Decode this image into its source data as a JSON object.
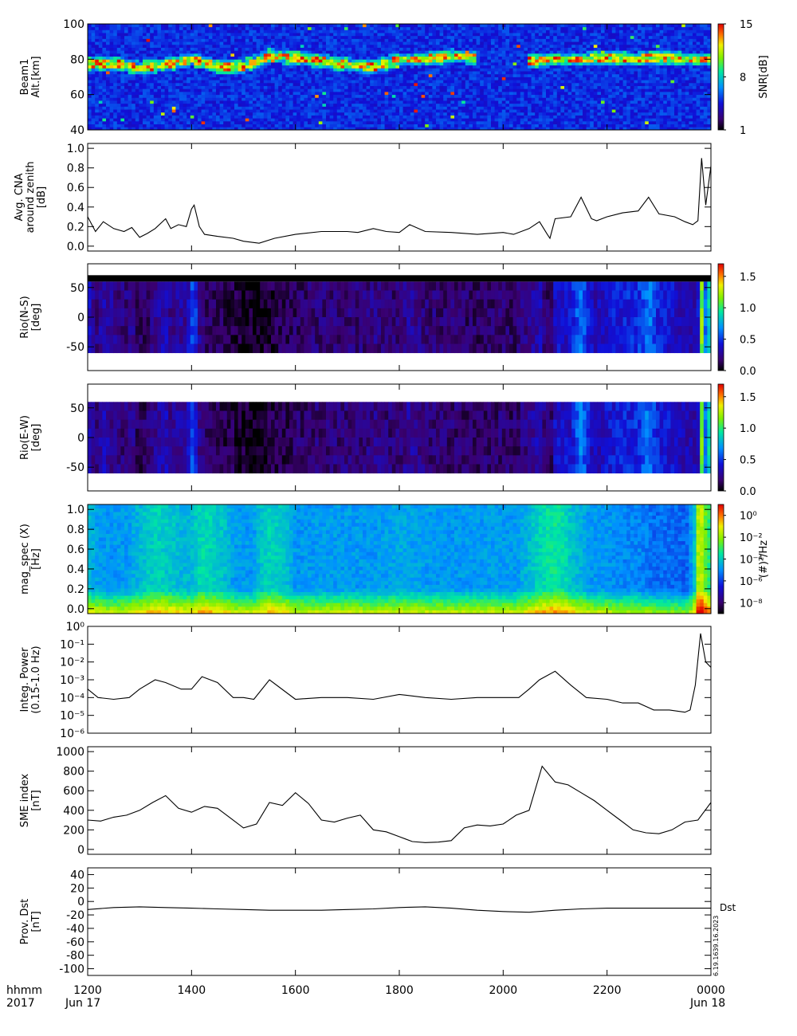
{
  "time_axis": {
    "label_top": "hhmm",
    "label_bottom": "2017",
    "ticks": [
      "1200",
      "1400",
      "1600",
      "1800",
      "2000",
      "2200",
      "0000"
    ],
    "tick_hours": [
      12,
      14,
      16,
      18,
      20,
      22,
      24
    ],
    "date_start": "Jun 17",
    "date_end": "Jun 18",
    "range_hours": [
      12,
      24
    ]
  },
  "annotations": {
    "dst_label": "Dst",
    "stamp": "6.19.1639.16.2023"
  },
  "chart_data": [
    {
      "type": "heatmap",
      "ylabel_lines": [
        "Beam1",
        "Alt.[km]"
      ],
      "ylim": [
        40,
        100
      ],
      "yticks": [
        "40",
        "60",
        "80",
        "100"
      ],
      "ytick_values": [
        40,
        60,
        80,
        100
      ],
      "colorbar": {
        "label": "SNR[dB]",
        "range": [
          1,
          15
        ],
        "ticks": [
          "1",
          "8",
          "15"
        ],
        "tick_values": [
          1,
          8,
          15
        ],
        "scale": "linear"
      },
      "echo_layer_altitude_km": {
        "hours": [
          12.0,
          12.5,
          13.0,
          13.5,
          14.0,
          14.5,
          15.0,
          15.5,
          16.0,
          16.5,
          17.0,
          17.5,
          18.0,
          18.5,
          19.0,
          19.5,
          20.0,
          20.5,
          21.0,
          21.5,
          22.0,
          22.5,
          23.0,
          23.5,
          24.0
        ],
        "values": [
          77,
          78,
          75,
          77,
          80,
          76,
          76,
          82,
          81,
          79,
          77,
          76,
          80,
          80,
          82,
          81,
          null,
          79,
          80,
          80,
          81,
          80,
          81,
          80,
          80
        ]
      }
    },
    {
      "type": "line",
      "ylabel_lines": [
        "Avg. CNA",
        "around zenith",
        "[dB]"
      ],
      "ylim": [
        -0.05,
        1.05
      ],
      "yticks": [
        "0.0",
        "0.2",
        "0.4",
        "0.6",
        "0.8",
        "1.0"
      ],
      "ytick_values": [
        0,
        0.2,
        0.4,
        0.6,
        0.8,
        1.0
      ],
      "x": [
        12.0,
        12.15,
        12.3,
        12.5,
        12.7,
        12.85,
        13.0,
        13.15,
        13.3,
        13.5,
        13.6,
        13.75,
        13.9,
        14.0,
        14.05,
        14.15,
        14.25,
        14.5,
        14.8,
        15.0,
        15.3,
        15.6,
        16.0,
        16.5,
        17.0,
        17.2,
        17.5,
        17.75,
        18.0,
        18.2,
        18.5,
        19.0,
        19.5,
        20.0,
        20.2,
        20.5,
        20.7,
        20.85,
        20.9,
        21.0,
        21.3,
        21.5,
        21.7,
        21.8,
        22.0,
        22.3,
        22.6,
        22.8,
        23.0,
        23.3,
        23.5,
        23.65,
        23.75,
        23.82,
        23.9,
        24.0
      ],
      "series": [
        {
          "values": [
            0.3,
            0.15,
            0.25,
            0.18,
            0.15,
            0.19,
            0.09,
            0.13,
            0.18,
            0.28,
            0.18,
            0.22,
            0.2,
            0.38,
            0.42,
            0.2,
            0.12,
            0.1,
            0.08,
            0.05,
            0.03,
            0.08,
            0.12,
            0.15,
            0.15,
            0.14,
            0.18,
            0.15,
            0.14,
            0.22,
            0.15,
            0.14,
            0.12,
            0.14,
            0.12,
            0.18,
            0.25,
            0.12,
            0.08,
            0.28,
            0.3,
            0.5,
            0.28,
            0.26,
            0.3,
            0.34,
            0.36,
            0.5,
            0.33,
            0.3,
            0.25,
            0.22,
            0.26,
            0.9,
            0.42,
            0.82
          ]
        }
      ]
    },
    {
      "type": "heatmap",
      "ylabel_lines": [
        "Rio(N-S)",
        "[deg]"
      ],
      "ylim": [
        -90,
        90
      ],
      "yticks": [
        "-50",
        "0",
        "50"
      ],
      "ytick_values": [
        -50,
        0,
        50
      ],
      "coverage": [
        -60,
        60
      ],
      "colorbar": {
        "range": [
          0,
          1.7
        ],
        "ticks": [
          "0.0",
          "0.5",
          "1.0",
          "1.5"
        ],
        "tick_values": [
          0,
          0.5,
          1.0,
          1.5
        ],
        "scale": "linear"
      }
    },
    {
      "type": "heatmap",
      "ylabel_lines": [
        "Rio(E-W)",
        "[deg]"
      ],
      "ylim": [
        -90,
        90
      ],
      "yticks": [
        "-50",
        "0",
        "50"
      ],
      "ytick_values": [
        -50,
        0,
        50
      ],
      "coverage": [
        -60,
        60
      ],
      "colorbar": {
        "range": [
          0,
          1.7
        ],
        "ticks": [
          "0.0",
          "0.5",
          "1.0",
          "1.5"
        ],
        "tick_values": [
          0,
          0.5,
          1.0,
          1.5
        ],
        "scale": "linear"
      }
    },
    {
      "type": "heatmap",
      "ylabel_lines": [
        "mag_spec (X)",
        "[Hz]"
      ],
      "ylim": [
        -0.05,
        1.05
      ],
      "yticks": [
        "0.0",
        "0.2",
        "0.4",
        "0.6",
        "0.8",
        "1.0"
      ],
      "ytick_values": [
        0,
        0.2,
        0.4,
        0.6,
        0.8,
        1.0
      ],
      "colorbar": {
        "label": "(#)²/Hz",
        "scale": "log",
        "range_exp": [
          -9,
          1
        ],
        "ticks": [
          "10⁻⁸",
          "10⁻⁶",
          "10⁻⁴",
          "10⁻²",
          "10⁰"
        ],
        "tick_exponents": [
          -8,
          -6,
          -4,
          -2,
          0
        ]
      }
    },
    {
      "type": "line",
      "ylabel_lines": [
        "Integ. Power",
        "(0.15-1.0 Hz)"
      ],
      "yscale": "log",
      "ylim_exp": [
        -6,
        0
      ],
      "yticks": [
        "10⁻⁶",
        "10⁻⁵",
        "10⁻⁴",
        "10⁻³",
        "10⁻²",
        "10⁻¹",
        "10⁰"
      ],
      "ytick_exponents": [
        -6,
        -5,
        -4,
        -3,
        -2,
        -1,
        0
      ],
      "x": [
        12.0,
        12.2,
        12.5,
        12.8,
        13.0,
        13.3,
        13.5,
        13.8,
        14.0,
        14.2,
        14.5,
        14.8,
        15.0,
        15.2,
        15.5,
        16.0,
        16.5,
        17.0,
        17.5,
        18.0,
        18.5,
        19.0,
        19.5,
        20.0,
        20.3,
        20.5,
        20.7,
        21.0,
        21.3,
        21.6,
        22.0,
        22.3,
        22.6,
        22.9,
        23.2,
        23.5,
        23.6,
        23.7,
        23.8,
        23.9,
        24.0
      ],
      "series": [
        {
          "values": [
            0.0003,
            0.0001,
            8e-05,
            0.0001,
            0.0003,
            0.001,
            0.0007,
            0.0003,
            0.0003,
            0.0015,
            0.0007,
            0.0001,
            0.0001,
            8e-05,
            0.001,
            8e-05,
            0.0001,
            0.0001,
            8e-05,
            0.00015,
            0.0001,
            8e-05,
            0.0001,
            0.0001,
            0.0001,
            0.0003,
            0.001,
            0.003,
            0.0005,
            0.0001,
            8e-05,
            5e-05,
            5e-05,
            2e-05,
            2e-05,
            1.5e-05,
            2e-05,
            0.0005,
            0.4,
            0.01,
            0.005
          ]
        }
      ]
    },
    {
      "type": "line",
      "ylabel_lines": [
        "SME index",
        "[nT]"
      ],
      "ylim": [
        -50,
        1050
      ],
      "yticks": [
        "0",
        "200",
        "400",
        "600",
        "800",
        "1000"
      ],
      "ytick_values": [
        0,
        200,
        400,
        600,
        800,
        1000
      ],
      "x": [
        12.0,
        12.25,
        12.5,
        12.75,
        13.0,
        13.25,
        13.5,
        13.75,
        14.0,
        14.25,
        14.5,
        14.75,
        15.0,
        15.25,
        15.5,
        15.75,
        16.0,
        16.25,
        16.5,
        16.75,
        17.0,
        17.25,
        17.5,
        17.75,
        18.0,
        18.25,
        18.5,
        18.75,
        19.0,
        19.25,
        19.5,
        19.75,
        20.0,
        20.25,
        20.5,
        20.75,
        21.0,
        21.25,
        21.5,
        21.75,
        22.0,
        22.25,
        22.5,
        22.75,
        23.0,
        23.25,
        23.5,
        23.75,
        24.0
      ],
      "series": [
        {
          "values": [
            300,
            290,
            330,
            350,
            400,
            480,
            550,
            420,
            380,
            440,
            420,
            320,
            220,
            260,
            480,
            450,
            580,
            470,
            300,
            280,
            320,
            350,
            200,
            180,
            130,
            80,
            70,
            75,
            90,
            220,
            250,
            240,
            260,
            350,
            400,
            850,
            690,
            660,
            580,
            500,
            400,
            300,
            200,
            170,
            160,
            200,
            280,
            300,
            480
          ]
        }
      ]
    },
    {
      "type": "line",
      "ylabel_lines": [
        "Prov. Dst",
        "[nT]"
      ],
      "ylim": [
        -110,
        50
      ],
      "yticks": [
        "-100",
        "-80",
        "-60",
        "-40",
        "-20",
        "0",
        "20",
        "40"
      ],
      "ytick_values": [
        -100,
        -80,
        -60,
        -40,
        -20,
        0,
        20,
        40
      ],
      "x": [
        12.0,
        12.5,
        13.0,
        13.5,
        14.0,
        14.5,
        15.0,
        15.5,
        16.0,
        16.5,
        17.0,
        17.5,
        18.0,
        18.5,
        19.0,
        19.5,
        20.0,
        20.5,
        21.0,
        21.5,
        22.0,
        22.5,
        23.0,
        23.5,
        24.0
      ],
      "series": [
        {
          "values": [
            -12,
            -9,
            -8,
            -9,
            -10,
            -11,
            -12,
            -13,
            -13,
            -13,
            -12,
            -11,
            -9,
            -8,
            -10,
            -13,
            -15,
            -16,
            -13,
            -11,
            -10,
            -10,
            -10,
            -10,
            -10
          ]
        }
      ]
    }
  ]
}
